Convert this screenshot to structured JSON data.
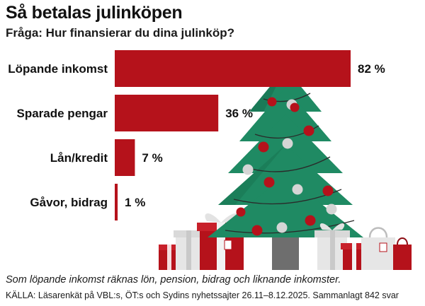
{
  "header": {
    "title": "Så betalas julinköpen",
    "subtitle": "Fråga: Hur finansierar du dina julinköp?"
  },
  "footer": {
    "note": "Som löpande inkomst räknas lön, pension, bidrag och liknande inkomster.",
    "source": "KÄLLA: Läsarenkät på VBL:s, ÖT:s och Sydins nyhetssajter 26.11–8.12.2025. Sammanlagt 842 svar"
  },
  "colors": {
    "bar": "#b5121b",
    "tree": "#1f8a63",
    "tree_shadow": "#166e4e",
    "ornament_red": "#b5121b",
    "ornament_silver": "#d5d5d5"
  },
  "chart_data": {
    "type": "bar",
    "orientation": "horizontal",
    "categories": [
      "Löpande inkomst",
      "Sparade pengar",
      "Lån/kredit",
      "Gåvor, bidrag"
    ],
    "values": [
      82,
      36,
      7,
      1
    ],
    "value_labels": [
      "82 %",
      "36 %",
      "7 %",
      "1 %"
    ],
    "unit": "%",
    "xlim": [
      0,
      100
    ],
    "grid": false,
    "legend": "none"
  }
}
